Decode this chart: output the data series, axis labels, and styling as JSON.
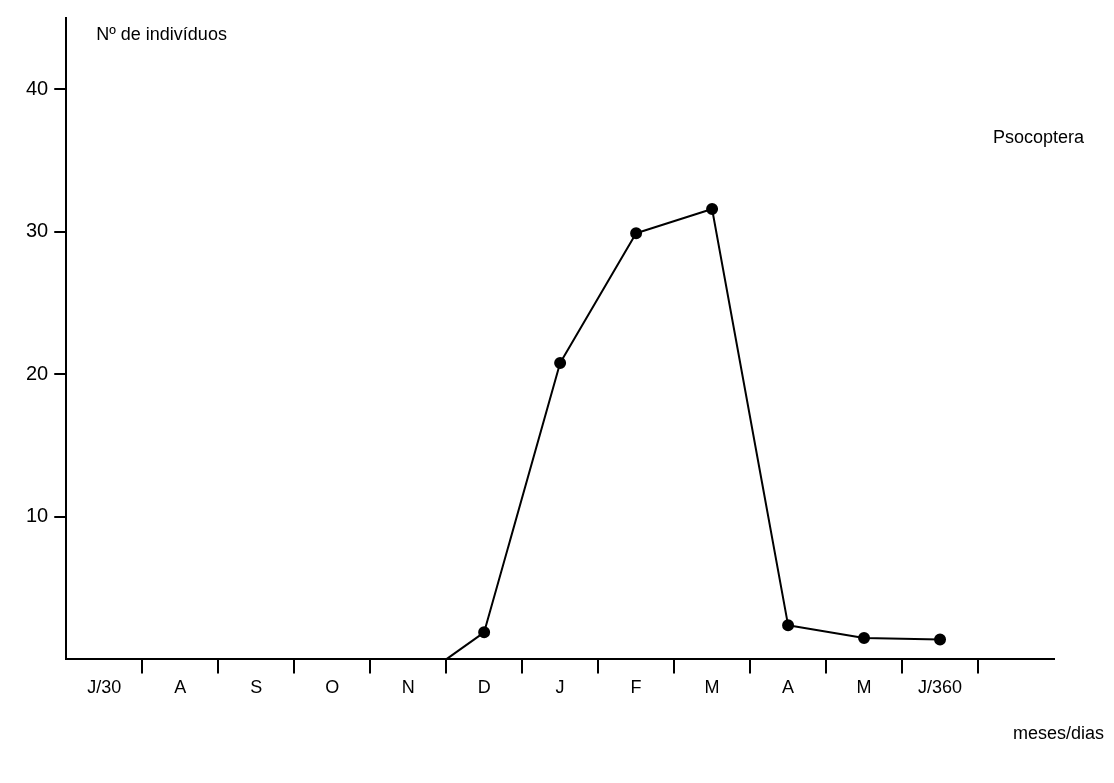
{
  "chart_data": {
    "type": "line",
    "title": "Psocoptera",
    "xlabel": "meses/dias",
    "ylabel": "Nº de indivíduos",
    "series": [
      {
        "color": "#000000",
        "x": [
          165,
          180
        ],
        "values": [
          0,
          1.9
        ]
      },
      {
        "color": "#000000",
        "marker": "circle",
        "x": [
          180,
          210,
          240,
          270,
          300,
          330,
          360
        ],
        "values": [
          1.9,
          20.8,
          29.9,
          31.6,
          2.4,
          1.5,
          1.4
        ]
      }
    ],
    "xlim": [
      15,
      405
    ],
    "xticks": [
      {
        "value": 30,
        "label": "J/30"
      },
      {
        "value": 45,
        "label": null
      },
      {
        "value": 60,
        "label": "A"
      },
      {
        "value": 75,
        "label": null
      },
      {
        "value": 90,
        "label": "S"
      },
      {
        "value": 105,
        "label": null
      },
      {
        "value": 120,
        "label": "O"
      },
      {
        "value": 135,
        "label": null
      },
      {
        "value": 150,
        "label": "N"
      },
      {
        "value": 165,
        "label": null
      },
      {
        "value": 180,
        "label": "D"
      },
      {
        "value": 195,
        "label": null
      },
      {
        "value": 210,
        "label": "J"
      },
      {
        "value": 225,
        "label": null
      },
      {
        "value": 240,
        "label": "F"
      },
      {
        "value": 255,
        "label": null
      },
      {
        "value": 270,
        "label": "M"
      },
      {
        "value": 285,
        "label": null
      },
      {
        "value": 300,
        "label": "A"
      },
      {
        "value": 315,
        "label": null
      },
      {
        "value": 330,
        "label": "M"
      },
      {
        "value": 345,
        "label": null
      },
      {
        "value": 360,
        "label": "J/360"
      },
      {
        "value": 375,
        "label": null
      }
    ],
    "ylim": [
      0,
      45
    ],
    "yticks": [
      10,
      20,
      30,
      40
    ],
    "grid": false,
    "legend": false,
    "line_style": "solid"
  }
}
